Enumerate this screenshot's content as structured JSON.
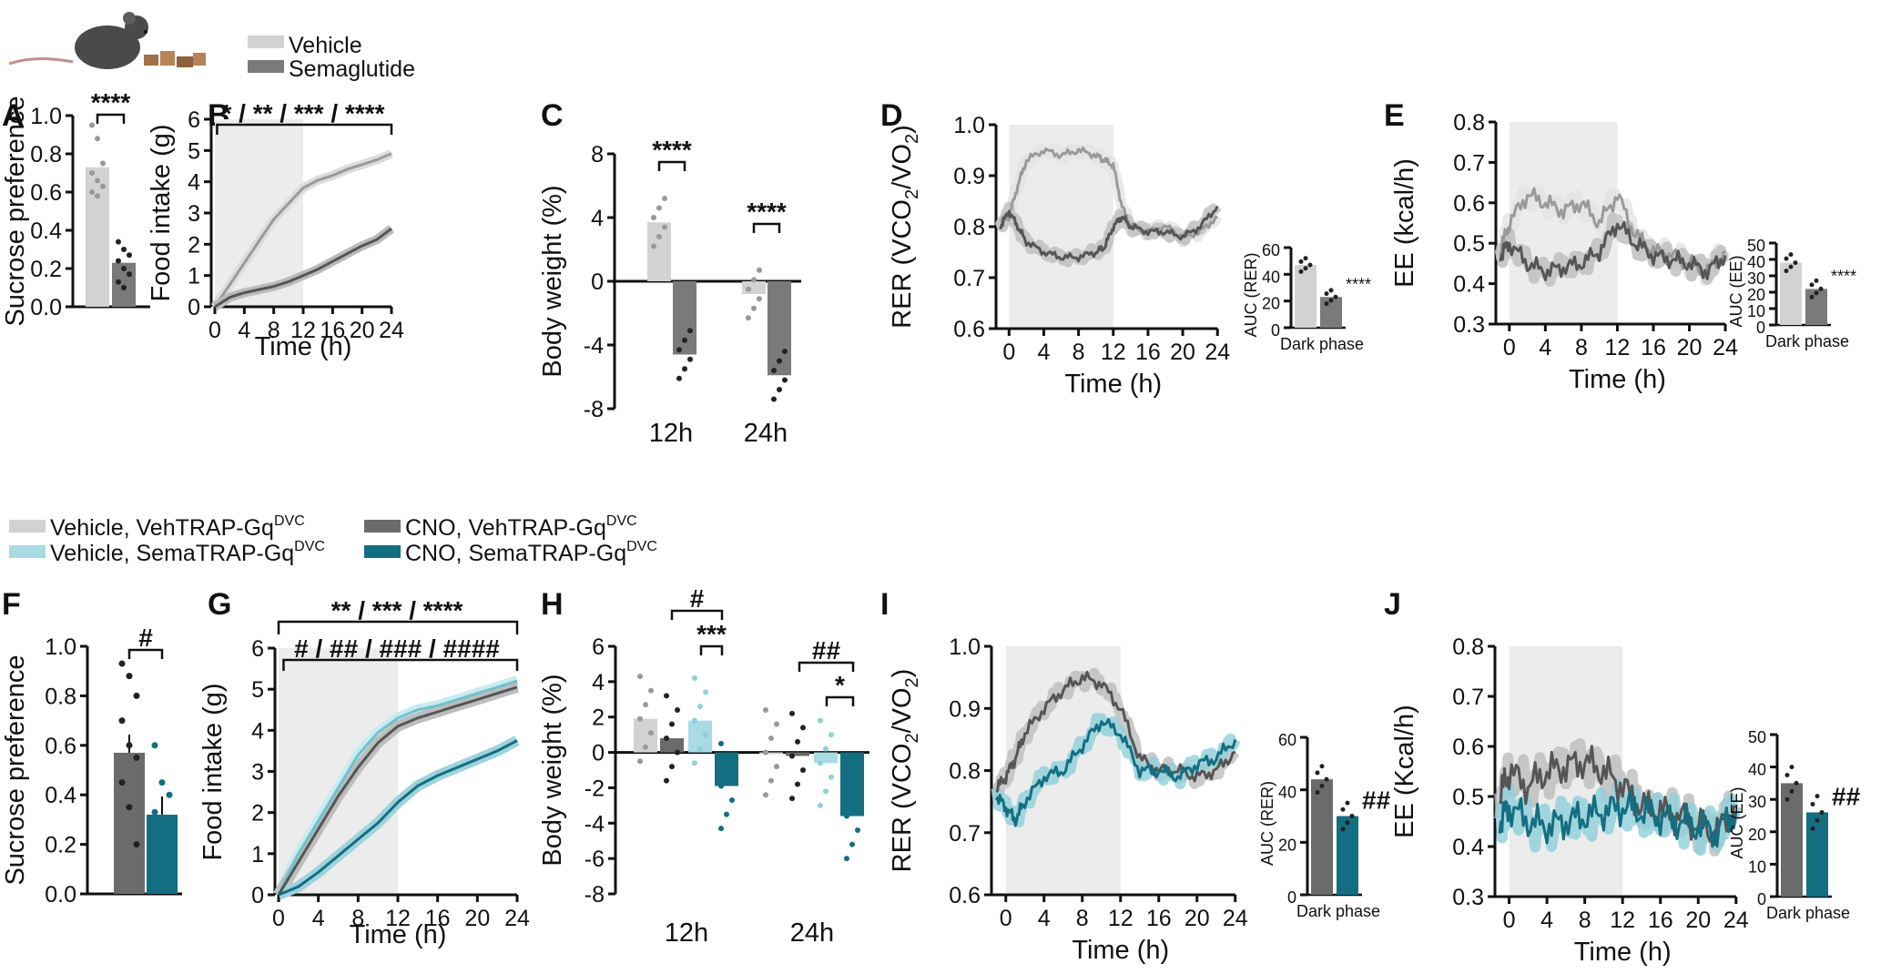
{
  "colors": {
    "vehicle": "#d2d2d2",
    "sema": "#7a7a7a",
    "veh_veh": "#d2d2d2",
    "veh_sema": "#a8dbe3",
    "cno_veh": "#6b6b6b",
    "cno_sema": "#136e82",
    "shade": "#ececec"
  },
  "legend_top": {
    "items": [
      "Vehicle",
      "Semaglutide"
    ]
  },
  "legend_bottom": {
    "items": [
      "Vehicle, VehTRAP-Gq",
      "Vehicle, SemaTRAP-Gq",
      "CNO, VehTRAP-Gq",
      "CNO, SemaTRAP-Gq"
    ],
    "superscript": "DVC"
  },
  "panel_letters": [
    "A",
    "B",
    "C",
    "D",
    "E",
    "F",
    "G",
    "H",
    "I",
    "J"
  ],
  "chart_data": [
    {
      "id": "A",
      "type": "bar",
      "categories": [
        "Vehicle",
        "Semaglutide"
      ],
      "values": [
        0.73,
        0.23
      ],
      "points": [
        [
          0.95,
          0.88,
          0.75,
          0.7,
          0.66,
          0.63,
          0.6,
          0.58
        ],
        [
          0.34,
          0.3,
          0.27,
          0.24,
          0.2,
          0.17,
          0.13,
          0.1
        ]
      ],
      "ylabel": "Sucrose preference",
      "ylim": [
        0,
        1.0
      ],
      "ticks": [
        "0.0",
        "0.2",
        "0.4",
        "0.6",
        "0.8",
        "1.0"
      ],
      "sig": "****"
    },
    {
      "id": "B",
      "type": "line",
      "xlabel": "Time (h)",
      "ylabel": "Food intake (g)",
      "xlim": [
        0,
        24
      ],
      "ylim": [
        0,
        6
      ],
      "xticks": [
        "0",
        "4",
        "8",
        "12",
        "16",
        "20",
        "24"
      ],
      "yticks": [
        "0",
        "1",
        "2",
        "3",
        "4",
        "5",
        "6"
      ],
      "series": [
        {
          "name": "Vehicle",
          "x": [
            0,
            2,
            4,
            6,
            8,
            10,
            12,
            14,
            16,
            18,
            20,
            22,
            24
          ],
          "y": [
            0,
            0.7,
            1.4,
            2.1,
            2.8,
            3.3,
            3.8,
            4.05,
            4.2,
            4.4,
            4.55,
            4.7,
            4.9
          ]
        },
        {
          "name": "Semaglutide",
          "x": [
            0,
            2,
            4,
            6,
            8,
            10,
            12,
            14,
            16,
            18,
            20,
            22,
            24
          ],
          "y": [
            0,
            0.3,
            0.45,
            0.55,
            0.65,
            0.8,
            1.0,
            1.2,
            1.45,
            1.7,
            1.95,
            2.15,
            2.5
          ]
        }
      ],
      "sig": "* / ** / *** / ****"
    },
    {
      "id": "C",
      "type": "bar",
      "categories": [
        "12h",
        "24h"
      ],
      "series": [
        {
          "name": "Vehicle",
          "values": [
            3.7,
            -0.8
          ]
        },
        {
          "name": "Semaglutide",
          "values": [
            -4.6,
            -5.9
          ]
        }
      ],
      "ylabel": "Body weight (%)",
      "ylim": [
        -8,
        8
      ],
      "yticks": [
        "8",
        "4",
        "0",
        "-4",
        "-8"
      ],
      "sig": [
        "****",
        "****"
      ]
    },
    {
      "id": "D",
      "type": "line",
      "xlabel": "Time (h)",
      "ylabel": "RER (VCO",
      "ylabel_sub": "2",
      "ylabel_mid": "/VO",
      "ylabel_end": ")",
      "xlim": [
        0,
        24
      ],
      "ylim": [
        0.6,
        1.0
      ],
      "xticks": [
        "0",
        "4",
        "8",
        "12",
        "16",
        "20",
        "24"
      ],
      "yticks": [
        "0.6",
        "0.7",
        "0.8",
        "0.9",
        "1.0"
      ],
      "series": [
        {
          "name": "Vehicle",
          "x": [
            -1,
            0,
            1,
            2,
            4,
            6,
            8,
            10,
            11,
            12,
            13,
            14,
            16,
            18,
            20,
            22,
            24
          ],
          "y": [
            0.81,
            0.82,
            0.88,
            0.93,
            0.95,
            0.94,
            0.95,
            0.94,
            0.93,
            0.92,
            0.84,
            0.8,
            0.79,
            0.8,
            0.78,
            0.79,
            0.82
          ]
        },
        {
          "name": "Semaglutide",
          "x": [
            -1,
            0,
            1,
            2,
            4,
            6,
            8,
            10,
            11,
            12,
            13,
            14,
            16,
            18,
            20,
            22,
            24
          ],
          "y": [
            0.8,
            0.83,
            0.8,
            0.77,
            0.75,
            0.74,
            0.74,
            0.75,
            0.76,
            0.8,
            0.82,
            0.8,
            0.79,
            0.79,
            0.78,
            0.8,
            0.84
          ]
        }
      ],
      "inset": {
        "type": "bar",
        "categories": [
          "Vehicle",
          "Semaglutide"
        ],
        "values": [
          47,
          23
        ],
        "ylabel": "AUC (RER)",
        "xlabel": "Dark phase",
        "ylim": [
          0,
          60
        ],
        "yticks": [
          "0",
          "20",
          "40",
          "60"
        ],
        "sig": "****"
      }
    },
    {
      "id": "E",
      "type": "line",
      "xlabel": "Time (h)",
      "ylabel": "EE (kcal/h)",
      "xlim": [
        0,
        24
      ],
      "ylim": [
        0.3,
        0.8
      ],
      "xticks": [
        "0",
        "4",
        "8",
        "12",
        "16",
        "20",
        "24"
      ],
      "yticks": [
        "0.3",
        "0.4",
        "0.5",
        "0.6",
        "0.7",
        "0.8"
      ],
      "series": [
        {
          "name": "Vehicle",
          "x": [
            -1,
            0,
            2,
            4,
            6,
            8,
            10,
            12,
            14,
            16,
            18,
            20,
            22,
            24
          ],
          "y": [
            0.48,
            0.55,
            0.62,
            0.6,
            0.58,
            0.6,
            0.55,
            0.62,
            0.52,
            0.48,
            0.47,
            0.45,
            0.43,
            0.48
          ]
        },
        {
          "name": "Semaglutide",
          "x": [
            -1,
            0,
            2,
            4,
            6,
            8,
            10,
            12,
            14,
            16,
            18,
            20,
            22,
            24
          ],
          "y": [
            0.47,
            0.5,
            0.45,
            0.43,
            0.44,
            0.45,
            0.48,
            0.55,
            0.5,
            0.47,
            0.46,
            0.45,
            0.43,
            0.47
          ]
        }
      ],
      "inset": {
        "type": "bar",
        "categories": [
          "Vehicle",
          "Semaglutide"
        ],
        "values": [
          38,
          22
        ],
        "ylabel": "AUC (EE)",
        "xlabel": "Dark phase",
        "ylim": [
          0,
          50
        ],
        "yticks": [
          "0",
          "10",
          "20",
          "30",
          "40",
          "50"
        ],
        "sig": "****"
      }
    },
    {
      "id": "F",
      "type": "bar",
      "categories": [
        "CNO, VehTRAP-Gq",
        "CNO, SemaTRAP-Gq"
      ],
      "values": [
        0.57,
        0.32
      ],
      "points": [
        [
          0.93,
          0.88,
          0.8,
          0.7,
          0.6,
          0.55,
          0.45,
          0.35,
          0.2
        ],
        [
          0.6,
          0.45,
          0.4,
          0.33,
          0.28,
          0.22,
          0.18,
          0.12
        ]
      ],
      "ylabel": "Sucrose preference",
      "ylim": [
        0,
        1.0
      ],
      "ticks": [
        "0.0",
        "0.2",
        "0.4",
        "0.6",
        "0.8",
        "1.0"
      ],
      "sig": "#"
    },
    {
      "id": "G",
      "type": "line",
      "xlabel": "Time (h)",
      "ylabel": "Food intake (g)",
      "xlim": [
        0,
        24
      ],
      "ylim": [
        0,
        6
      ],
      "xticks": [
        "0",
        "4",
        "8",
        "12",
        "16",
        "20",
        "24"
      ],
      "yticks": [
        "0",
        "1",
        "2",
        "3",
        "4",
        "5",
        "6"
      ],
      "series": [
        {
          "name": "Vehicle, VehTRAP-Gq",
          "x": [
            0,
            2,
            4,
            6,
            8,
            10,
            12,
            14,
            16,
            18,
            20,
            22,
            24
          ],
          "y": [
            0,
            0.9,
            1.7,
            2.5,
            3.2,
            3.8,
            4.2,
            4.4,
            4.55,
            4.7,
            4.85,
            5.0,
            5.15
          ]
        },
        {
          "name": "Vehicle, SemaTRAP-Gq",
          "x": [
            0,
            2,
            4,
            6,
            8,
            10,
            12,
            14,
            16,
            18,
            20,
            22,
            24
          ],
          "y": [
            0,
            1.0,
            1.8,
            2.6,
            3.4,
            3.95,
            4.3,
            4.5,
            4.6,
            4.75,
            4.9,
            5.05,
            5.2
          ]
        },
        {
          "name": "CNO, VehTRAP-Gq",
          "x": [
            0,
            2,
            4,
            6,
            8,
            10,
            12,
            14,
            16,
            18,
            20,
            22,
            24
          ],
          "y": [
            0,
            0.8,
            1.6,
            2.4,
            3.1,
            3.7,
            4.1,
            4.3,
            4.45,
            4.6,
            4.75,
            4.9,
            5.05
          ]
        },
        {
          "name": "CNO, SemaTRAP-Gq",
          "x": [
            0,
            2,
            4,
            6,
            8,
            10,
            12,
            14,
            16,
            18,
            20,
            22,
            24
          ],
          "y": [
            0,
            0.2,
            0.55,
            0.95,
            1.35,
            1.75,
            2.25,
            2.65,
            2.9,
            3.1,
            3.3,
            3.5,
            3.75
          ]
        }
      ],
      "sig": [
        "** / *** / ****",
        "# / ## / ### / ####"
      ]
    },
    {
      "id": "H",
      "type": "bar",
      "categories": [
        "12h",
        "24h"
      ],
      "series": [
        {
          "name": "Vehicle, VehTRAP-Gq",
          "values": [
            1.9,
            0.0
          ]
        },
        {
          "name": "CNO, VehTRAP-Gq",
          "values": [
            0.8,
            -0.2
          ]
        },
        {
          "name": "Vehicle, SemaTRAP-Gq",
          "values": [
            1.8,
            -0.6
          ]
        },
        {
          "name": "CNO, SemaTRAP-Gq",
          "values": [
            -1.9,
            -3.6
          ]
        }
      ],
      "ylabel": "Body weight (%)",
      "ylim": [
        -8,
        6
      ],
      "yticks": [
        "6",
        "4",
        "2",
        "0",
        "-2",
        "-4",
        "-6",
        "-8"
      ],
      "sig": [
        "#",
        "***",
        "##",
        "*"
      ]
    },
    {
      "id": "I",
      "type": "line",
      "xlabel": "Time (h)",
      "ylabel": "RER (VCO",
      "ylabel_sub": "2",
      "ylabel_mid": "/VO",
      "ylabel_end": ")",
      "xlim": [
        0,
        24
      ],
      "ylim": [
        0.6,
        1.0
      ],
      "xticks": [
        "0",
        "4",
        "8",
        "12",
        "16",
        "20",
        "24"
      ],
      "yticks": [
        "0.6",
        "0.7",
        "0.8",
        "0.9",
        "1.0"
      ],
      "series": [
        {
          "name": "CNO, VehTRAP-Gq",
          "x": [
            -1,
            0,
            1,
            2,
            4,
            6,
            8,
            10,
            12,
            14,
            16,
            18,
            20,
            22,
            24
          ],
          "y": [
            0.77,
            0.79,
            0.82,
            0.86,
            0.9,
            0.93,
            0.95,
            0.94,
            0.9,
            0.82,
            0.8,
            0.8,
            0.79,
            0.8,
            0.83
          ]
        },
        {
          "name": "CNO, SemaTRAP-Gq",
          "x": [
            -1,
            0,
            1,
            2,
            4,
            6,
            8,
            10,
            12,
            14,
            16,
            18,
            20,
            22,
            24
          ],
          "y": [
            0.76,
            0.74,
            0.72,
            0.75,
            0.79,
            0.8,
            0.84,
            0.88,
            0.86,
            0.8,
            0.8,
            0.79,
            0.81,
            0.82,
            0.85
          ]
        }
      ],
      "inset": {
        "type": "bar",
        "categories": [
          "CNO, VehTRAP-Gq",
          "CNO, SemaTRAP-Gq"
        ],
        "values": [
          44,
          30
        ],
        "ylabel": "AUC (RER)",
        "xlabel": "Dark phase",
        "ylim": [
          0,
          60
        ],
        "yticks": [
          "0",
          "20",
          "40",
          "60"
        ],
        "sig": "##"
      }
    },
    {
      "id": "J",
      "type": "line",
      "xlabel": "Time (h)",
      "ylabel": "EE (Kcal/h)",
      "xlim": [
        0,
        24
      ],
      "ylim": [
        0.3,
        0.8
      ],
      "xticks": [
        "0",
        "4",
        "8",
        "12",
        "16",
        "20",
        "24"
      ],
      "yticks": [
        "0.3",
        "0.4",
        "0.5",
        "0.6",
        "0.7",
        "0.8"
      ],
      "series": [
        {
          "name": "CNO, VehTRAP-Gq",
          "x": [
            -1,
            0,
            2,
            4,
            6,
            8,
            10,
            12,
            14,
            16,
            18,
            20,
            22,
            24
          ],
          "y": [
            0.5,
            0.55,
            0.52,
            0.55,
            0.56,
            0.57,
            0.55,
            0.52,
            0.48,
            0.47,
            0.46,
            0.44,
            0.43,
            0.48
          ]
        },
        {
          "name": "CNO, SemaTRAP-Gq",
          "x": [
            -1,
            0,
            2,
            4,
            6,
            8,
            10,
            12,
            14,
            16,
            18,
            20,
            22,
            24
          ],
          "y": [
            0.45,
            0.48,
            0.45,
            0.44,
            0.45,
            0.46,
            0.47,
            0.48,
            0.47,
            0.46,
            0.45,
            0.44,
            0.43,
            0.47
          ]
        }
      ],
      "inset": {
        "type": "bar",
        "categories": [
          "CNO, VehTRAP-Gq",
          "CNO, SemaTRAP-Gq"
        ],
        "values": [
          35,
          26
        ],
        "ylabel": "AUC (EE)",
        "xlabel": "Dark phase",
        "ylim": [
          0,
          50
        ],
        "yticks": [
          "0",
          "10",
          "20",
          "30",
          "40",
          "50"
        ],
        "sig": "##"
      }
    }
  ]
}
